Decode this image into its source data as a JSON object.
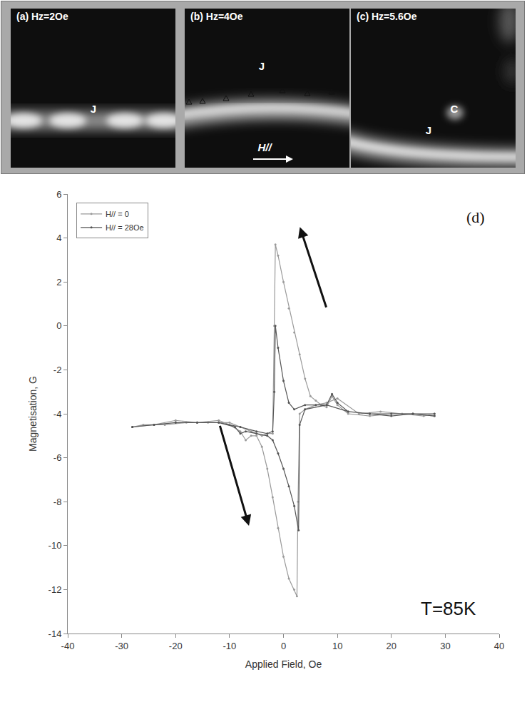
{
  "images": [
    {
      "title": "(a) Hz=2Oe",
      "labels": [
        "J"
      ]
    },
    {
      "title": "(b) Hz=4Oe",
      "labels": [
        "J",
        "H//"
      ]
    },
    {
      "title": "(c) Hz=5.6Oe",
      "labels": [
        "C",
        "J"
      ]
    }
  ],
  "chart_data": {
    "type": "line",
    "marker": "circle",
    "panel_label": "(d)",
    "annotation": "T=85K",
    "x_label": "Applied Field, Oe",
    "y_label": "Magnetisation, G",
    "xlim": [
      -40,
      40
    ],
    "xticks": [
      -40,
      -30,
      -20,
      -10,
      0,
      10,
      20,
      30,
      40
    ],
    "ylim": [
      -14,
      6
    ],
    "yticks": [
      -14,
      -12,
      -10,
      -8,
      -6,
      -4,
      -2,
      0,
      2,
      4,
      6
    ],
    "grid": false,
    "legend": "top-left",
    "series": [
      {
        "name": "H// = 0",
        "color": "#9a9a9a",
        "x": [
          28,
          24,
          20,
          16,
          12,
          10,
          9,
          8,
          7,
          6,
          5,
          4,
          3,
          2,
          1,
          0,
          -1,
          -1.5,
          -1.7,
          -2,
          -3,
          -4,
          -6,
          -8,
          -10,
          -14,
          -18,
          -22,
          -26,
          -28,
          -28,
          -24,
          -20,
          -16,
          -12,
          -10,
          -8,
          -7,
          -6,
          -5,
          -4,
          -3,
          -2,
          -1,
          0,
          1,
          2,
          2.5,
          2.7,
          3,
          4,
          6,
          8,
          10,
          14,
          18,
          22,
          26,
          28
        ],
        "values": [
          -4.1,
          -4.0,
          -4.0,
          -4.1,
          -4.0,
          -3.6,
          -3.2,
          -3.7,
          -3.6,
          -3.4,
          -3.2,
          -2.4,
          -1.3,
          -0.3,
          0.8,
          2.0,
          3.2,
          3.7,
          0,
          -4.9,
          -4.9,
          -5.0,
          -4.8,
          -4.6,
          -4.4,
          -4.4,
          -4.4,
          -4.5,
          -4.5,
          -4.6,
          -4.6,
          -4.5,
          -4.3,
          -4.4,
          -4.3,
          -4.5,
          -4.8,
          -5.2,
          -5.0,
          -5.0,
          -5.5,
          -6.5,
          -7.8,
          -9.2,
          -10.5,
          -11.5,
          -12.0,
          -12.3,
          -8.0,
          -4.0,
          -3.8,
          -3.6,
          -3.5,
          -3.3,
          -4.0,
          -3.9,
          -4.0,
          -4.1,
          -4.0
        ]
      },
      {
        "name": "H// = 28Oe",
        "color": "#555555",
        "x": [
          28,
          24,
          20,
          16,
          12,
          10,
          9,
          8,
          6,
          4,
          2,
          1,
          0,
          -1,
          -1.5,
          -1.7,
          -2,
          -3,
          -5,
          -8,
          -12,
          -16,
          -20,
          -24,
          -28,
          -28,
          -24,
          -20,
          -16,
          -12,
          -9,
          -8,
          -7,
          -5,
          -3,
          -2,
          -1,
          0,
          1,
          2,
          2.8,
          3,
          4,
          8,
          12,
          16,
          20,
          24,
          28
        ],
        "values": [
          -4.1,
          -4.0,
          -4.1,
          -4.0,
          -3.9,
          -3.5,
          -3.1,
          -3.6,
          -3.6,
          -3.6,
          -3.8,
          -3.5,
          -2.5,
          -1.0,
          0,
          -3.0,
          -4.8,
          -4.9,
          -4.8,
          -4.6,
          -4.4,
          -4.4,
          -4.4,
          -4.5,
          -4.6,
          -4.6,
          -4.5,
          -4.4,
          -4.4,
          -4.4,
          -4.6,
          -4.9,
          -4.8,
          -4.9,
          -5.0,
          -5.2,
          -5.8,
          -6.5,
          -7.3,
          -8.2,
          -9.3,
          -4.5,
          -3.8,
          -3.6,
          -3.9,
          -4.0,
          -4.0,
          -4.0,
          -4.0
        ]
      }
    ]
  }
}
